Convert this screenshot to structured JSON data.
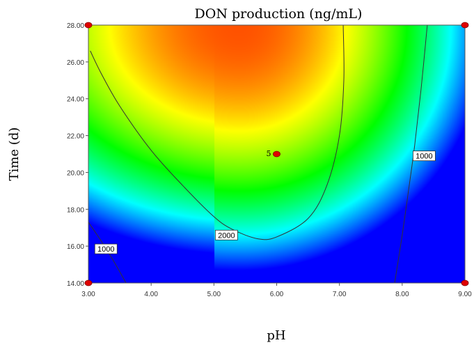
{
  "chart_data": {
    "type": "contour",
    "title": "DON production (ng/mL)",
    "xlabel": "pH",
    "ylabel": "Time (d)",
    "xlim": [
      3.0,
      9.0
    ],
    "ylim": [
      14.0,
      28.0
    ],
    "x_ticks": [
      "3.00",
      "4.00",
      "5.00",
      "6.00",
      "7.00",
      "8.00",
      "9.00"
    ],
    "y_ticks": [
      "14.00",
      "16.00",
      "18.00",
      "20.00",
      "22.00",
      "24.00",
      "26.00",
      "28.00"
    ],
    "color_scale": [
      "#0000ff",
      "#00ffff",
      "#00ff00",
      "#ffff00",
      "#ff0000"
    ],
    "contours": [
      {
        "level": "2000",
        "label": "2000",
        "label_at": [
          5.2,
          16.6
        ],
        "points": [
          [
            3.03,
            26.6
          ],
          [
            3.2,
            25.4
          ],
          [
            3.5,
            23.6
          ],
          [
            4.0,
            21.2
          ],
          [
            4.5,
            19.3
          ],
          [
            5.0,
            17.6
          ],
          [
            5.3,
            16.9
          ],
          [
            5.7,
            16.4
          ],
          [
            6.0,
            16.5
          ],
          [
            6.5,
            17.5
          ],
          [
            6.8,
            19.3
          ],
          [
            7.0,
            22.0
          ],
          [
            7.07,
            25.0
          ],
          [
            7.06,
            28.0
          ]
        ]
      },
      {
        "level": "1000",
        "label": "1000",
        "label_at": [
          8.35,
          20.9
        ],
        "points": [
          [
            7.88,
            14.0
          ],
          [
            8.0,
            16.6
          ],
          [
            8.1,
            19.0
          ],
          [
            8.2,
            21.5
          ],
          [
            8.3,
            24.5
          ],
          [
            8.4,
            28.0
          ]
        ]
      },
      {
        "level": "1000",
        "label": "1000",
        "label_at": [
          3.28,
          15.85
        ],
        "points": [
          [
            3.0,
            17.3
          ],
          [
            3.2,
            16.3
          ],
          [
            3.4,
            15.2
          ],
          [
            3.6,
            14.0
          ]
        ]
      }
    ],
    "design_points": [
      {
        "x": 3.0,
        "y": 28.0,
        "label": ""
      },
      {
        "x": 9.0,
        "y": 28.0,
        "label": ""
      },
      {
        "x": 3.0,
        "y": 14.0,
        "label": ""
      },
      {
        "x": 9.0,
        "y": 14.0,
        "label": ""
      },
      {
        "x": 6.0,
        "y": 21.0,
        "label": "5"
      }
    ]
  }
}
